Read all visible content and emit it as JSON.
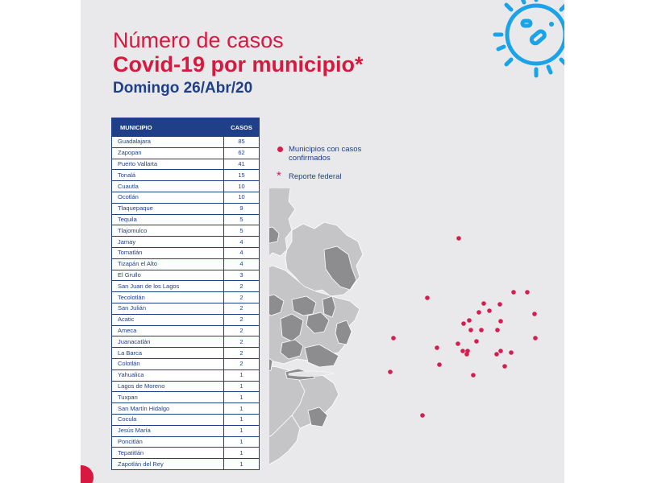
{
  "header": {
    "title_line1": "Número de casos",
    "title_line2": "Covid-19 por municipio*",
    "date": "Domingo 26/Abr/20"
  },
  "table": {
    "col_municipio": "MUNICIPIO",
    "col_casos": "CASOS",
    "rows": [
      {
        "municipio": "Guadalajara",
        "casos": "85"
      },
      {
        "municipio": "Zapopan",
        "casos": "62"
      },
      {
        "municipio": "Puerto Vallarta",
        "casos": "41"
      },
      {
        "municipio": "Tonalá",
        "casos": "15"
      },
      {
        "municipio": "Cuautla",
        "casos": "10"
      },
      {
        "municipio": "Ocotlán",
        "casos": "10"
      },
      {
        "municipio": "Tlaquepaque",
        "casos": "9"
      },
      {
        "municipio": "Tequila",
        "casos": "5"
      },
      {
        "municipio": "Tlajomulco",
        "casos": "5"
      },
      {
        "municipio": "Jamay",
        "casos": "4"
      },
      {
        "municipio": "Tomatlán",
        "casos": "4"
      },
      {
        "municipio": "Tizapán el Alto",
        "casos": "4"
      },
      {
        "municipio": "El Grullo",
        "casos": "3"
      },
      {
        "municipio": "San Juan de los Lagos",
        "casos": "2"
      },
      {
        "municipio": "Tecolotlán",
        "casos": "2"
      },
      {
        "municipio": "San Julián",
        "casos": "2"
      },
      {
        "municipio": "Acatic",
        "casos": "2"
      },
      {
        "municipio": "Ameca",
        "casos": "2"
      },
      {
        "municipio": "Juanacatlán",
        "casos": "2"
      },
      {
        "municipio": "La Barca",
        "casos": "2"
      },
      {
        "municipio": "Colotlán",
        "casos": "2"
      },
      {
        "municipio": "Yahualica",
        "casos": "1"
      },
      {
        "municipio": "Lagos de Moreno",
        "casos": "1"
      },
      {
        "municipio": "Tuxpan",
        "casos": "1"
      },
      {
        "municipio": "San Martín Hidalgo",
        "casos": "1"
      },
      {
        "municipio": "Cocula",
        "casos": "1"
      },
      {
        "municipio": "Jesús María",
        "casos": "1"
      },
      {
        "municipio": "Poncitlán",
        "casos": "1"
      },
      {
        "municipio": "Tepatitlán",
        "casos": "1"
      },
      {
        "municipio": "Zapotlán del Rey",
        "casos": "1"
      }
    ]
  },
  "legend": {
    "confirmed_label": "Municipios con casos confirmados",
    "federal_label": "Reporte federal"
  },
  "colors": {
    "title_red": "#d8193f",
    "navy": "#1f3f88",
    "marker": "#d31f4f",
    "map_light": "#c5c5c7",
    "map_dark": "#8d8d90",
    "virus_blue": "#1aa3e6"
  }
}
